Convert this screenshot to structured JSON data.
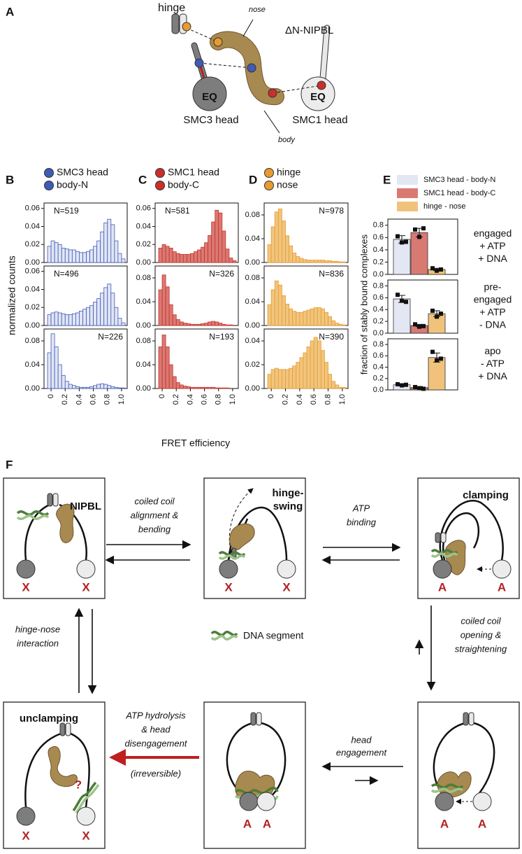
{
  "panel_labels": [
    "A",
    "B",
    "C",
    "D",
    "E",
    "F"
  ],
  "diagram_a": {
    "hinge": "hinge",
    "nose": "nose",
    "protein": "ΔN-NIPBL",
    "eq": [
      "EQ",
      "EQ"
    ],
    "smc3": "SMC3 head",
    "smc1": "SMC1 head",
    "body": "body"
  },
  "histogram_legends": [
    [
      {
        "name": "SMC3 head",
        "color": "#3e5bb6"
      },
      {
        "name": "body-N",
        "color": "#3e5bb6"
      }
    ],
    [
      {
        "name": "SMC1 head",
        "color": "#c9302c"
      },
      {
        "name": "body-C",
        "color": "#c9302c"
      }
    ],
    [
      {
        "name": "hinge",
        "color": "#e99b2e"
      },
      {
        "name": "nose",
        "color": "#e99b2e"
      }
    ]
  ],
  "x_label": "FRET efficiency",
  "y_label": "normalized counts",
  "bar_legend": [
    {
      "name": "SMC3 head - body-N",
      "color": "#e3e6f3"
    },
    {
      "name": "SMC1 head - body-C",
      "color": "#d97a72"
    },
    {
      "name": "hinge - nose",
      "color": "#f0c27c"
    }
  ],
  "bar_y_label": "fraction of stably bound complexes",
  "chart_data": [
    {
      "type": "histogram",
      "bins": [
        -0.05,
        0,
        0.05,
        0.1,
        0.15,
        0.2,
        0.25,
        0.3,
        0.35,
        0.4,
        0.45,
        0.5,
        0.55,
        0.6,
        0.65,
        0.7,
        0.75,
        0.8,
        0.85,
        0.9,
        0.95,
        1,
        1.05
      ],
      "values": [
        0.018,
        0.024,
        0.022,
        0.02,
        0.016,
        0.015,
        0.014,
        0.014,
        0.012,
        0.011,
        0.011,
        0.012,
        0.014,
        0.018,
        0.024,
        0.034,
        0.044,
        0.048,
        0.042,
        0.024,
        0.01,
        0.004
      ],
      "color": "#3e5bb6",
      "fill": "#e1e5f4",
      "xlim": [
        -0.1,
        1.08
      ],
      "ylim": [
        0,
        0.066
      ],
      "yticks": [
        {
          "value": 0,
          "label": "0.00"
        },
        0.02,
        0.04,
        0.06
      ],
      "annotation": "N=519",
      "annotation_corner": "left"
    },
    {
      "type": "histogram",
      "bins": [
        -0.05,
        0,
        0.05,
        0.1,
        0.15,
        0.2,
        0.25,
        0.3,
        0.35,
        0.4,
        0.45,
        0.5,
        0.55,
        0.6,
        0.65,
        0.7,
        0.75,
        0.8,
        0.85,
        0.9,
        0.95,
        1,
        1.05
      ],
      "values": [
        0.012,
        0.014,
        0.015,
        0.014,
        0.013,
        0.012,
        0.012,
        0.013,
        0.014,
        0.016,
        0.018,
        0.02,
        0.022,
        0.026,
        0.03,
        0.036,
        0.042,
        0.046,
        0.036,
        0.02,
        0.008,
        0.003
      ],
      "color": "#3e5bb6",
      "fill": "#e1e5f4",
      "xlim": [
        -0.1,
        1.08
      ],
      "ylim": [
        0,
        0.066
      ],
      "yticks": [
        {
          "value": 0,
          "label": "0.00"
        },
        0.02,
        0.04,
        0.06
      ],
      "annotation": "N=496",
      "annotation_corner": "left"
    },
    {
      "type": "histogram",
      "bins": [
        -0.05,
        0,
        0.05,
        0.1,
        0.15,
        0.2,
        0.25,
        0.3,
        0.35,
        0.4,
        0.45,
        0.5,
        0.55,
        0.6,
        0.65,
        0.7,
        0.75,
        0.8,
        0.85,
        0.9,
        0.95,
        1,
        1.05
      ],
      "values": [
        0.06,
        0.092,
        0.07,
        0.04,
        0.022,
        0.012,
        0.007,
        0.005,
        0.003,
        0.002,
        0.002,
        0.002,
        0.003,
        0.005,
        0.007,
        0.008,
        0.007,
        0.005,
        0.003,
        0.002,
        0.001,
        0.001
      ],
      "color": "#3e5bb6",
      "fill": "#e1e5f4",
      "xlim": [
        -0.1,
        1.08
      ],
      "ylim": [
        0,
        0.1
      ],
      "yticks": [
        {
          "value": 0,
          "label": "0.00"
        },
        0.04,
        0.08
      ],
      "xticks": [
        0,
        0.2,
        0.4,
        0.6,
        0.8,
        {
          "value": 1,
          "label": "1.0"
        }
      ],
      "annotation": "N=226",
      "annotation_corner": "right"
    },
    {
      "type": "histogram",
      "bins": [
        -0.05,
        0,
        0.05,
        0.1,
        0.15,
        0.2,
        0.25,
        0.3,
        0.35,
        0.4,
        0.45,
        0.5,
        0.55,
        0.6,
        0.65,
        0.7,
        0.75,
        0.8,
        0.85,
        0.9,
        0.95,
        1,
        1.05
      ],
      "values": [
        0.016,
        0.02,
        0.018,
        0.016,
        0.012,
        0.01,
        0.009,
        0.009,
        0.009,
        0.01,
        0.012,
        0.014,
        0.017,
        0.022,
        0.03,
        0.045,
        0.058,
        0.055,
        0.035,
        0.015,
        0.005,
        0.002
      ],
      "color": "#c9302c",
      "fill": "#d97a72",
      "xlim": [
        -0.1,
        1.08
      ],
      "ylim": [
        0,
        0.066
      ],
      "yticks": [
        {
          "value": 0,
          "label": "0.00"
        },
        0.02,
        0.04,
        0.06
      ],
      "annotation": "N=581",
      "annotation_corner": "left"
    },
    {
      "type": "histogram",
      "bins": [
        -0.05,
        0,
        0.05,
        0.1,
        0.15,
        0.2,
        0.25,
        0.3,
        0.35,
        0.4,
        0.45,
        0.5,
        0.55,
        0.6,
        0.65,
        0.7,
        0.75,
        0.8,
        0.85,
        0.9,
        0.95,
        1,
        1.05
      ],
      "values": [
        0.06,
        0.085,
        0.065,
        0.035,
        0.018,
        0.01,
        0.006,
        0.004,
        0.003,
        0.002,
        0.002,
        0.002,
        0.003,
        0.004,
        0.006,
        0.007,
        0.006,
        0.004,
        0.002,
        0.001,
        0.001,
        0
      ],
      "color": "#c9302c",
      "fill": "#d97a72",
      "xlim": [
        -0.1,
        1.08
      ],
      "ylim": [
        0,
        0.1
      ],
      "yticks": [
        {
          "value": 0,
          "label": "0.00"
        },
        0.04,
        0.08
      ],
      "annotation": "N=326",
      "annotation_corner": "right"
    },
    {
      "type": "histogram",
      "bins": [
        -0.05,
        0,
        0.05,
        0.1,
        0.15,
        0.2,
        0.25,
        0.3,
        0.35,
        0.4,
        0.45,
        0.5,
        0.55,
        0.6,
        0.65,
        0.7,
        0.75,
        0.8,
        0.85,
        0.9,
        0.95,
        1,
        1.05
      ],
      "values": [
        0.07,
        0.09,
        0.07,
        0.04,
        0.02,
        0.01,
        0.006,
        0.004,
        0.003,
        0.002,
        0.002,
        0.002,
        0.002,
        0.002,
        0.002,
        0.002,
        0.001,
        0.001,
        0.001,
        0.001,
        0,
        0
      ],
      "color": "#c9302c",
      "fill": "#d97a72",
      "xlim": [
        -0.1,
        1.08
      ],
      "ylim": [
        0,
        0.1
      ],
      "yticks": [
        {
          "value": 0,
          "label": "0.00"
        },
        0.04,
        0.08
      ],
      "xticks": [
        0,
        0.2,
        0.4,
        0.6,
        0.8,
        {
          "value": 1,
          "label": "1.0"
        }
      ],
      "annotation": "N=193",
      "annotation_corner": "right"
    },
    {
      "type": "histogram",
      "bins": [
        -0.05,
        0,
        0.05,
        0.1,
        0.15,
        0.2,
        0.25,
        0.3,
        0.35,
        0.4,
        0.45,
        0.5,
        0.55,
        0.6,
        0.65,
        0.7,
        0.75,
        0.8,
        0.85,
        0.9,
        0.95,
        1,
        1.05
      ],
      "values": [
        0.03,
        0.06,
        0.085,
        0.09,
        0.07,
        0.045,
        0.028,
        0.016,
        0.01,
        0.007,
        0.005,
        0.004,
        0.004,
        0.004,
        0.004,
        0.004,
        0.003,
        0.003,
        0.002,
        0.002,
        0.001,
        0.001
      ],
      "color": "#e99b2e",
      "fill": "#f0c57e",
      "xlim": [
        -0.1,
        1.08
      ],
      "ylim": [
        0,
        0.1
      ],
      "yticks": [
        {
          "value": 0,
          "label": "0.00"
        },
        0.04,
        0.08
      ],
      "annotation": "N=978",
      "annotation_corner": "right"
    },
    {
      "type": "histogram",
      "bins": [
        -0.05,
        0,
        0.05,
        0.1,
        0.15,
        0.2,
        0.25,
        0.3,
        0.35,
        0.4,
        0.45,
        0.5,
        0.55,
        0.6,
        0.65,
        0.7,
        0.75,
        0.8,
        0.85,
        0.9,
        0.95,
        1,
        1.05
      ],
      "values": [
        0.035,
        0.06,
        0.075,
        0.068,
        0.05,
        0.036,
        0.028,
        0.024,
        0.022,
        0.022,
        0.024,
        0.026,
        0.028,
        0.03,
        0.03,
        0.028,
        0.022,
        0.015,
        0.008,
        0.004,
        0.002,
        0.001
      ],
      "color": "#e99b2e",
      "fill": "#f0c57e",
      "xlim": [
        -0.1,
        1.08
      ],
      "ylim": [
        0,
        0.1
      ],
      "yticks": [
        {
          "value": 0,
          "label": "0.00"
        },
        0.04,
        0.08
      ],
      "annotation": "N=836",
      "annotation_corner": "right"
    },
    {
      "type": "histogram",
      "bins": [
        -0.05,
        0,
        0.05,
        0.1,
        0.15,
        0.2,
        0.25,
        0.3,
        0.35,
        0.4,
        0.45,
        0.5,
        0.55,
        0.6,
        0.65,
        0.7,
        0.75,
        0.8,
        0.85,
        0.9,
        0.95,
        1,
        1.05
      ],
      "values": [
        0.012,
        0.016,
        0.017,
        0.016,
        0.016,
        0.016,
        0.017,
        0.019,
        0.022,
        0.026,
        0.03,
        0.035,
        0.04,
        0.043,
        0.04,
        0.032,
        0.022,
        0.012,
        0.006,
        0.003,
        0.001,
        0.001
      ],
      "color": "#e99b2e",
      "fill": "#f0c57e",
      "xlim": [
        -0.1,
        1.08
      ],
      "ylim": [
        0,
        0.05
      ],
      "yticks": [
        {
          "value": 0,
          "label": "0.00"
        },
        0.02,
        0.04
      ],
      "xticks": [
        0,
        0.2,
        0.4,
        0.6,
        0.8,
        {
          "value": 1,
          "label": "1.0"
        }
      ],
      "annotation": "N=390",
      "annotation_corner": "right"
    },
    {
      "type": "bar",
      "values": [
        0.57,
        0.68,
        0.08
      ],
      "errors": [
        0.06,
        0.07,
        0.02
      ],
      "points": [
        [
          0.62,
          0.52,
          0.53
        ],
        [
          0.73,
          0.61,
          0.75
        ],
        [
          0.1,
          0.06,
          0.08
        ]
      ],
      "ylim": [
        0,
        0.9
      ],
      "yticks": [
        {
          "value": 0,
          "label": "0.0"
        },
        0.2,
        0.4,
        0.6,
        0.8
      ],
      "condition": [
        "engaged",
        "+ ATP",
        "+ DNA"
      ]
    },
    {
      "type": "bar",
      "values": [
        0.58,
        0.13,
        0.33
      ],
      "errors": [
        0.06,
        0.02,
        0.05
      ],
      "points": [
        [
          0.65,
          0.55,
          0.53
        ],
        [
          0.15,
          0.11,
          0.12
        ],
        [
          0.38,
          0.28,
          0.33
        ]
      ],
      "ylim": [
        0,
        0.9
      ],
      "yticks": [
        {
          "value": 0,
          "label": "0.0"
        },
        0.2,
        0.4,
        0.6,
        0.8
      ],
      "condition": [
        "pre-",
        "engaged",
        "+ ATP",
        "- DNA"
      ]
    },
    {
      "type": "bar",
      "values": [
        0.09,
        0.04,
        0.57
      ],
      "errors": [
        0.02,
        0.02,
        0.08
      ],
      "points": [
        [
          0.1,
          0.08,
          0.09
        ],
        [
          0.05,
          0.03,
          0.02
        ],
        [
          0.67,
          0.52,
          0.55
        ]
      ],
      "ylim": [
        0,
        0.9
      ],
      "yticks": [
        {
          "value": 0,
          "label": "0.0"
        },
        0.2,
        0.4,
        0.6,
        0.8
      ],
      "condition": [
        "apo",
        "- ATP",
        "+ DNA"
      ]
    }
  ],
  "diagram_f": {
    "states": [
      {
        "title": [
          "NIPBL"
        ],
        "heads": [
          "X",
          "X"
        ]
      },
      {
        "title": [
          "hinge-",
          "swing"
        ],
        "heads": [
          "X",
          "X"
        ]
      },
      {
        "title": [
          "clamping"
        ],
        "heads": [
          "A",
          "A"
        ]
      },
      {
        "title": [
          "unclamping"
        ],
        "heads": [
          "X",
          "X"
        ],
        "mark": "?"
      },
      {
        "heads": [
          "A",
          "A"
        ]
      },
      {
        "heads": [
          "A",
          "A"
        ]
      }
    ],
    "alignment": [
      "coiled coil",
      "alignment &",
      "bending"
    ],
    "atp_binding": [
      "ATP",
      "binding"
    ],
    "hinge_nose": [
      "hinge-nose",
      "interaction"
    ],
    "dna_legend": "DNA segment",
    "opening": [
      "coiled coil",
      "opening &",
      "straightening"
    ],
    "hydrolysis": [
      "ATP hydrolysis",
      "& head",
      "disengagement"
    ],
    "irreversible": "(irreversible)",
    "engagement": [
      "head",
      "engagement"
    ]
  }
}
